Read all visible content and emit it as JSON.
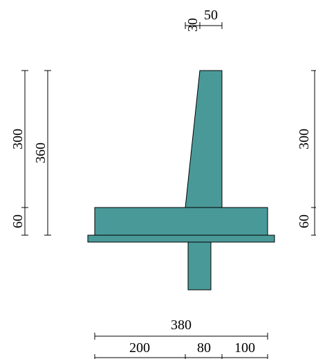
{
  "colors": {
    "fill": "#4a9999",
    "stroke": "#000000",
    "background": "#ffffff"
  },
  "dimensions": {
    "top": {
      "a": "30",
      "b": "50"
    },
    "left": {
      "upper": "300",
      "total": "360",
      "lower": "60"
    },
    "right": {
      "upper": "300",
      "lower": "60"
    },
    "bottom": {
      "total": "380",
      "left": "200",
      "middle": "80",
      "right": "100"
    }
  }
}
